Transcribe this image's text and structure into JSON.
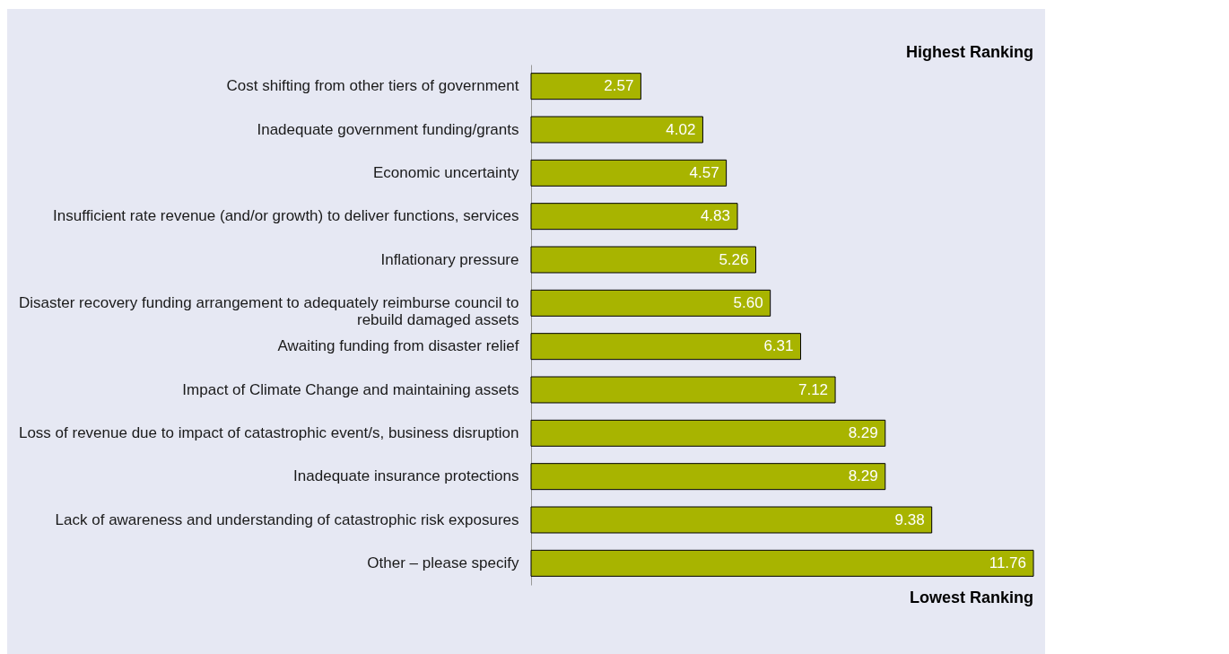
{
  "chart_data": {
    "type": "bar",
    "orientation": "horizontal",
    "color": "#a8b400",
    "categories": [
      "Cost shifting from other tiers of government",
      "Inadequate government funding/grants",
      "Economic uncertainty",
      "Insufficient  rate revenue (and/or growth) to deliver functions, services",
      "Inflationary pressure",
      "Disaster recovery funding arrangement to adequately reimburse council to rebuild damaged assets",
      "Awaiting funding from disaster relief",
      "Impact of Climate Change and maintaining assets",
      "Loss of revenue due to impact of catastrophic event/s, business disruption",
      "Inadequate insurance protections",
      "Lack of awareness and understanding of catastrophic risk exposures",
      "Other – please specify"
    ],
    "values": [
      2.57,
      4.02,
      4.57,
      4.83,
      5.26,
      5.6,
      6.31,
      7.12,
      8.29,
      8.29,
      9.38,
      11.76
    ],
    "value_labels": [
      "2.57",
      "4.02",
      "4.57",
      "4.83",
      "5.26",
      "5.60",
      "6.31",
      "7.12",
      "8.29",
      "8.29",
      "9.38",
      "11.76"
    ],
    "annotations": [
      "Highest Ranking",
      "Lowest Ranking"
    ]
  }
}
